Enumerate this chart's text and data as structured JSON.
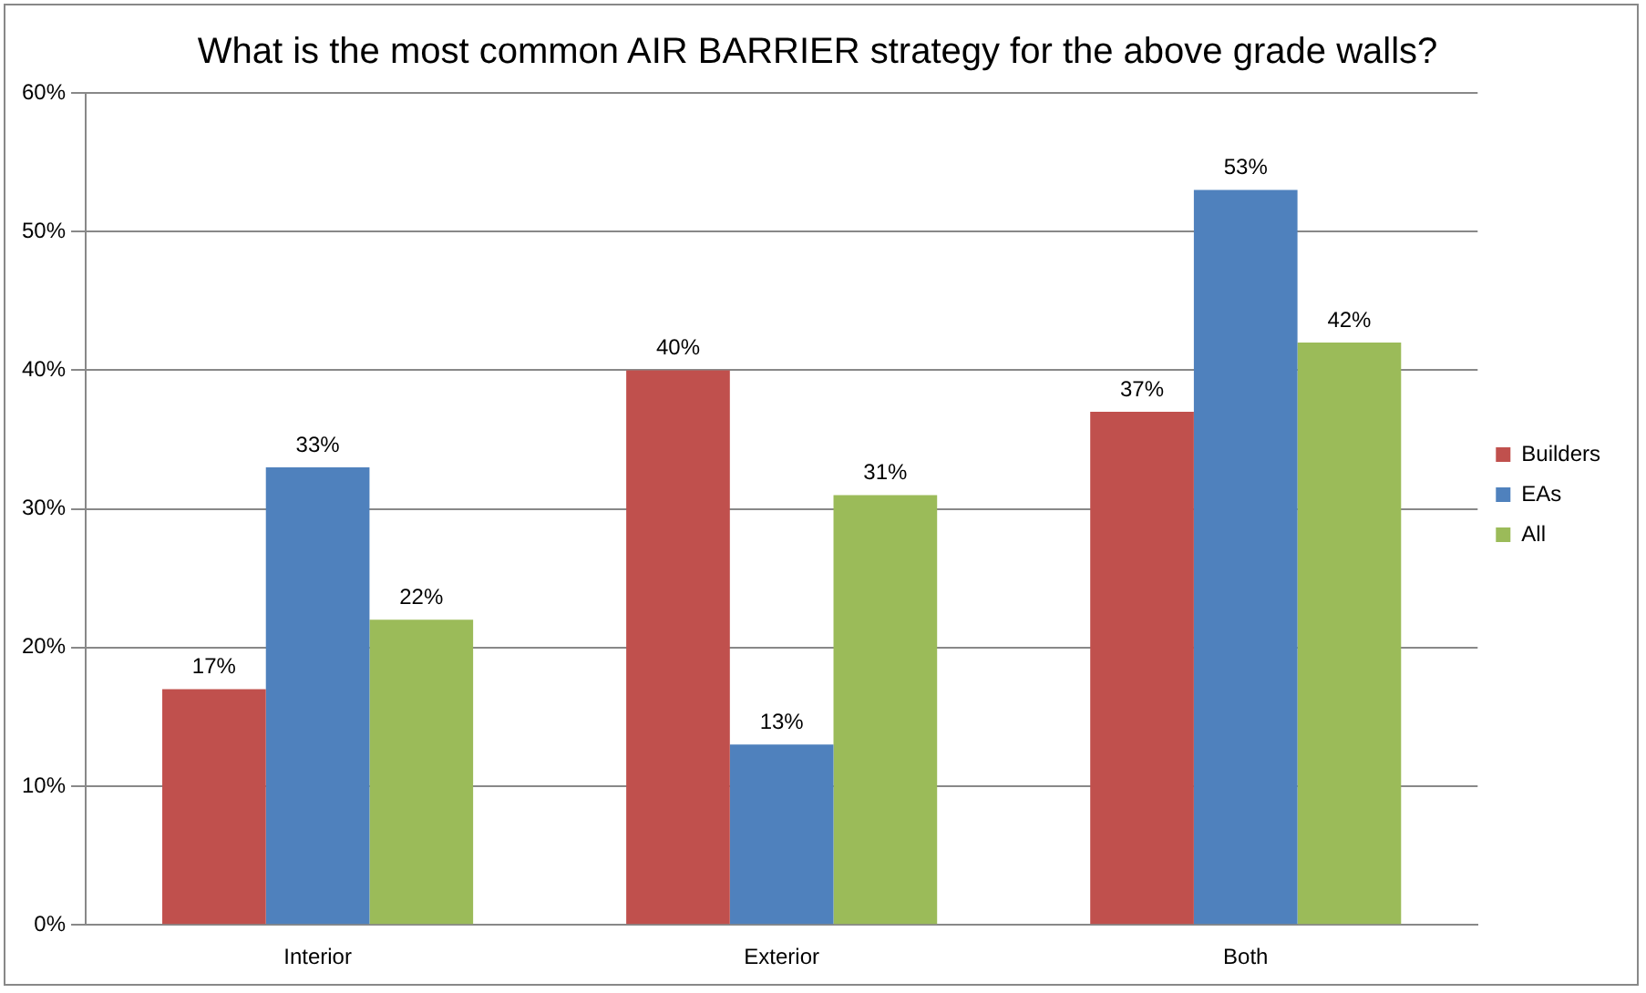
{
  "chart_data": {
    "type": "bar",
    "title": "What is the most common AIR BARRIER strategy for the above grade walls?",
    "categories": [
      "Interior",
      "Exterior",
      "Both"
    ],
    "series": [
      {
        "name": "Builders",
        "color": "#c0504d",
        "values": [
          17,
          40,
          37
        ],
        "value_labels": [
          "17%",
          "40%",
          "37%"
        ]
      },
      {
        "name": "EAs",
        "color": "#4f81bd",
        "values": [
          33,
          13,
          53
        ],
        "value_labels": [
          "33%",
          "13%",
          "53%"
        ]
      },
      {
        "name": "All",
        "color": "#9bbb59",
        "values": [
          22,
          31,
          42
        ],
        "value_labels": [
          "22%",
          "31%",
          "42%"
        ]
      }
    ],
    "ylim": [
      0,
      60
    ],
    "yticks": [
      {
        "value": 0,
        "label": "0%"
      },
      {
        "value": 10,
        "label": "10%"
      },
      {
        "value": 20,
        "label": "20%"
      },
      {
        "value": 30,
        "label": "30%"
      },
      {
        "value": 40,
        "label": "40%"
      },
      {
        "value": 50,
        "label": "50%"
      },
      {
        "value": 60,
        "label": "60%"
      }
    ],
    "grid": "y",
    "legend": "right"
  }
}
